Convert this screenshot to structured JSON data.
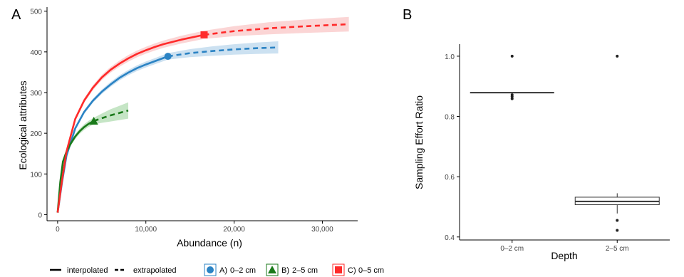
{
  "chart_data": [
    {
      "panel_label": "A",
      "type": "line",
      "xlabel": "Abundance (n)",
      "ylabel": "Ecological attributes",
      "xlim": [
        -1200,
        34000
      ],
      "ylim": [
        -15,
        510
      ],
      "x_ticks": [
        0,
        10000,
        20000,
        30000
      ],
      "x_tick_labels": [
        "0",
        "10,000",
        "20,000",
        "30,000"
      ],
      "y_ticks": [
        0,
        100,
        200,
        300,
        400,
        500
      ],
      "y_tick_labels": [
        "0",
        "100",
        "200",
        "300",
        "400",
        "500"
      ],
      "grid": false,
      "legend_position": "bottom",
      "legend": {
        "line_types": [
          {
            "style": "solid",
            "label": "interpolated"
          },
          {
            "style": "dashed",
            "label": "extrapolated"
          }
        ],
        "items": [
          {
            "key": "A)",
            "label": "0–2 cm",
            "color": "#2b83c4",
            "marker": "circle"
          },
          {
            "key": "B)",
            "label": "2–5 cm",
            "color": "#1a7a1a",
            "marker": "triangle"
          },
          {
            "key": "C)",
            "label": "0–5 cm",
            "color": "#ff2a2a",
            "marker": "square"
          }
        ]
      },
      "series": [
        {
          "label": "0–2 cm",
          "color": "#2b83c4",
          "band_color": "#aacde8",
          "marker": "circle",
          "observed": {
            "x": 12500,
            "y": 389
          },
          "interpolated": [
            [
              0,
              5
            ],
            [
              500,
              80
            ],
            [
              1000,
              145
            ],
            [
              2000,
              212
            ],
            [
              3000,
              252
            ],
            [
              4000,
              280
            ],
            [
              5000,
              302
            ],
            [
              6000,
              320
            ],
            [
              7000,
              336
            ],
            [
              8000,
              349
            ],
            [
              9000,
              360
            ],
            [
              10000,
              369
            ],
            [
              11000,
              377
            ],
            [
              12500,
              389
            ]
          ],
          "extrapolated": [
            [
              12500,
              389
            ],
            [
              15000,
              397
            ],
            [
              17500,
              402
            ],
            [
              20000,
              406
            ],
            [
              22500,
              409
            ],
            [
              25000,
              411
            ]
          ],
          "ci_halfwidth": [
            [
              0,
              0
            ],
            [
              2000,
              4
            ],
            [
              6000,
              6
            ],
            [
              12500,
              8
            ],
            [
              18000,
              12
            ],
            [
              25000,
              15
            ]
          ]
        },
        {
          "label": "2–5 cm",
          "color": "#1a7a1a",
          "band_color": "#9ed49e",
          "marker": "triangle",
          "observed": {
            "x": 4100,
            "y": 230
          },
          "interpolated": [
            [
              0,
              5
            ],
            [
              300,
              80
            ],
            [
              600,
              130
            ],
            [
              1000,
              155
            ],
            [
              1500,
              175
            ],
            [
              2000,
              192
            ],
            [
              2500,
              205
            ],
            [
              3000,
              215
            ],
            [
              3500,
              223
            ],
            [
              4100,
              230
            ]
          ],
          "extrapolated": [
            [
              4100,
              230
            ],
            [
              5000,
              237
            ],
            [
              6000,
              244
            ],
            [
              7000,
              250
            ],
            [
              8000,
              256
            ]
          ],
          "ci_halfwidth": [
            [
              0,
              0
            ],
            [
              1000,
              5
            ],
            [
              4100,
              8
            ],
            [
              6000,
              15
            ],
            [
              8000,
              20
            ]
          ]
        },
        {
          "label": "0–5 cm",
          "color": "#ff2a2a",
          "band_color": "#f9b9b9",
          "marker": "square",
          "observed": {
            "x": 16600,
            "y": 442
          },
          "interpolated": [
            [
              0,
              5
            ],
            [
              500,
              85
            ],
            [
              1000,
              155
            ],
            [
              2000,
              235
            ],
            [
              3000,
              280
            ],
            [
              4000,
              312
            ],
            [
              5000,
              337
            ],
            [
              6000,
              356
            ],
            [
              7000,
              371
            ],
            [
              8000,
              384
            ],
            [
              9000,
              395
            ],
            [
              10000,
              404
            ],
            [
              11000,
              412
            ],
            [
              12000,
              419
            ],
            [
              14000,
              430
            ],
            [
              16600,
              442
            ]
          ],
          "extrapolated": [
            [
              16600,
              442
            ],
            [
              20000,
              451
            ],
            [
              24000,
              458
            ],
            [
              28000,
              463
            ],
            [
              33000,
              468
            ]
          ],
          "ci_halfwidth": [
            [
              0,
              0
            ],
            [
              2000,
              5
            ],
            [
              8000,
              8
            ],
            [
              16600,
              10
            ],
            [
              24000,
              15
            ],
            [
              33000,
              18
            ]
          ]
        }
      ]
    },
    {
      "panel_label": "B",
      "type": "box",
      "xlabel": "Depth",
      "ylabel": "Sampling Effort Ratio",
      "ylim": [
        0.39,
        1.04
      ],
      "y_ticks": [
        0.4,
        0.6,
        0.8,
        1.0
      ],
      "y_tick_labels": [
        "0.4",
        "0.6",
        "0.8",
        "1.0"
      ],
      "grid": false,
      "categories": [
        "0–2 cm",
        "2–5 cm"
      ],
      "boxes": [
        {
          "category": "0–2 cm",
          "q1": 0.879,
          "median": 0.879,
          "q3": 0.879,
          "whisker_low": 0.879,
          "whisker_high": 0.879,
          "outliers": [
            1.0,
            0.872,
            0.866,
            0.859
          ]
        },
        {
          "category": "2–5 cm",
          "q1": 0.507,
          "median": 0.518,
          "q3": 0.532,
          "whisker_low": 0.478,
          "whisker_high": 0.545,
          "outliers": [
            1.0,
            0.455,
            0.422
          ]
        }
      ]
    }
  ]
}
